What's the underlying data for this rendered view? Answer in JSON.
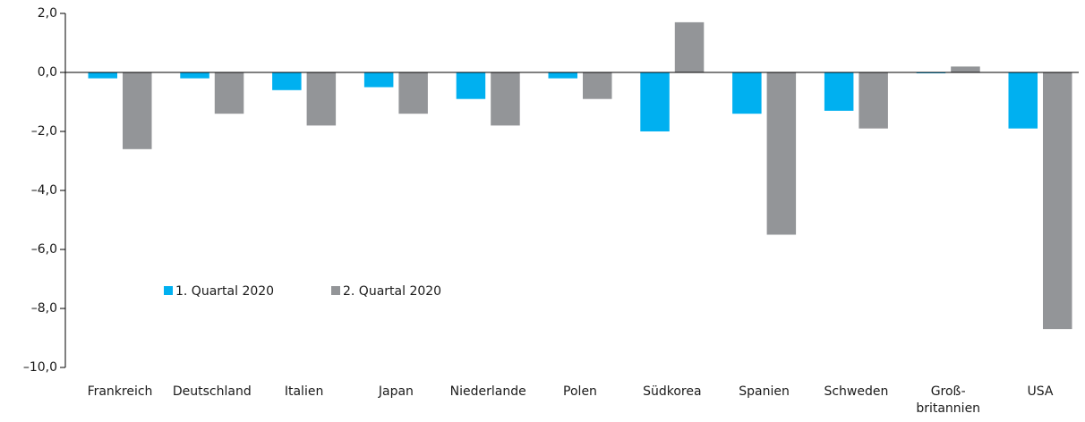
{
  "chart_data": {
    "type": "bar",
    "categories": [
      "Frankreich",
      "Deutschland",
      "Italien",
      "Japan",
      "Niederlande",
      "Polen",
      "Südkorea",
      "Spanien",
      "Schweden",
      "Groß-\nbritannien",
      "USA"
    ],
    "series": [
      {
        "name": "1. Quartal 2020",
        "color": "#00b0f0",
        "values": [
          -0.2,
          -0.2,
          -0.6,
          -0.5,
          -0.9,
          -0.2,
          -2.0,
          -1.4,
          -1.3,
          -0.03,
          -1.9
        ]
      },
      {
        "name": "2. Quartal 2020",
        "color": "#939598",
        "values": [
          -2.6,
          -1.4,
          -1.8,
          -1.4,
          -1.8,
          -0.9,
          1.7,
          -5.5,
          -1.9,
          0.2,
          -8.7
        ]
      }
    ],
    "ylim": [
      -10,
      2
    ],
    "yticks": [
      {
        "value": 2,
        "label": "2,0"
      },
      {
        "value": 0,
        "label": "0,0"
      },
      {
        "value": -2,
        "label": "–2,0"
      },
      {
        "value": -4,
        "label": "–4,0"
      },
      {
        "value": -6,
        "label": "–6,0"
      },
      {
        "value": -8,
        "label": "–8,0"
      },
      {
        "value": -10,
        "label": "–10,0"
      }
    ],
    "legend": "lower-left"
  }
}
